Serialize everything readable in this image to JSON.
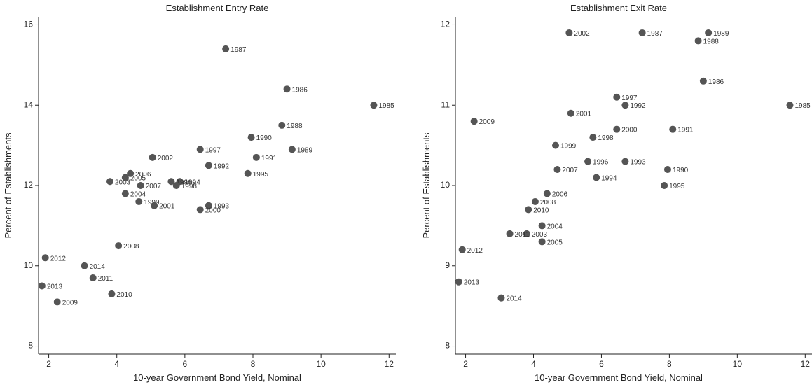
{
  "chart_data": [
    {
      "type": "scatter",
      "title": "Establishment Entry Rate",
      "xlabel": "10-year Government Bond Yield, Nominal",
      "ylabel": "Percent of Establishments",
      "xlim": [
        1.7,
        12.2
      ],
      "ylim": [
        7.8,
        16.2
      ],
      "xticks": [
        2,
        4,
        6,
        8,
        10,
        12
      ],
      "yticks": [
        8,
        10,
        12,
        14,
        16
      ],
      "grid": false,
      "points": [
        {
          "label": "1985",
          "x": 11.55,
          "y": 14.0
        },
        {
          "label": "1986",
          "x": 9.0,
          "y": 14.4
        },
        {
          "label": "1987",
          "x": 7.2,
          "y": 15.4
        },
        {
          "label": "1988",
          "x": 8.85,
          "y": 13.5
        },
        {
          "label": "1989",
          "x": 9.15,
          "y": 12.9
        },
        {
          "label": "1990",
          "x": 7.95,
          "y": 13.2
        },
        {
          "label": "1991",
          "x": 8.1,
          "y": 12.7
        },
        {
          "label": "1992",
          "x": 6.7,
          "y": 12.5
        },
        {
          "label": "1993",
          "x": 6.7,
          "y": 11.5
        },
        {
          "label": "1994",
          "x": 5.85,
          "y": 12.1
        },
        {
          "label": "1995",
          "x": 7.85,
          "y": 12.3
        },
        {
          "label": "1996",
          "x": 5.6,
          "y": 12.1
        },
        {
          "label": "1997",
          "x": 6.45,
          "y": 12.9
        },
        {
          "label": "1998",
          "x": 5.75,
          "y": 12.0
        },
        {
          "label": "1999",
          "x": 4.65,
          "y": 11.6
        },
        {
          "label": "2000",
          "x": 6.45,
          "y": 11.4
        },
        {
          "label": "2001",
          "x": 5.1,
          "y": 11.5
        },
        {
          "label": "2002",
          "x": 5.05,
          "y": 12.7
        },
        {
          "label": "2003",
          "x": 3.8,
          "y": 12.1
        },
        {
          "label": "2004",
          "x": 4.25,
          "y": 11.8
        },
        {
          "label": "2005",
          "x": 4.25,
          "y": 12.2
        },
        {
          "label": "2006",
          "x": 4.4,
          "y": 12.3
        },
        {
          "label": "2007",
          "x": 4.7,
          "y": 12.0
        },
        {
          "label": "2008",
          "x": 4.05,
          "y": 10.5
        },
        {
          "label": "2009",
          "x": 2.25,
          "y": 9.1
        },
        {
          "label": "2010",
          "x": 3.85,
          "y": 9.3
        },
        {
          "label": "2011",
          "x": 3.3,
          "y": 9.7
        },
        {
          "label": "2012",
          "x": 1.9,
          "y": 10.2
        },
        {
          "label": "2013",
          "x": 1.8,
          "y": 9.5
        },
        {
          "label": "2014",
          "x": 3.05,
          "y": 10.0
        }
      ]
    },
    {
      "type": "scatter",
      "title": "Establishment Exit Rate",
      "xlabel": "10-year Government Bond Yield, Nominal",
      "ylabel": "Percent of Establishments",
      "xlim": [
        1.7,
        12.2
      ],
      "ylim": [
        7.9,
        12.1
      ],
      "xticks": [
        2,
        4,
        6,
        8,
        10,
        12
      ],
      "yticks": [
        8,
        9,
        10,
        11,
        12
      ],
      "grid": false,
      "points": [
        {
          "label": "1985",
          "x": 11.55,
          "y": 11.0
        },
        {
          "label": "1986",
          "x": 9.0,
          "y": 11.3
        },
        {
          "label": "1987",
          "x": 7.2,
          "y": 11.9
        },
        {
          "label": "1988",
          "x": 8.85,
          "y": 11.8
        },
        {
          "label": "1989",
          "x": 9.15,
          "y": 11.9
        },
        {
          "label": "1990",
          "x": 7.95,
          "y": 10.2
        },
        {
          "label": "1991",
          "x": 8.1,
          "y": 10.7
        },
        {
          "label": "1992",
          "x": 6.7,
          "y": 11.0
        },
        {
          "label": "1993",
          "x": 6.7,
          "y": 10.3
        },
        {
          "label": "1994",
          "x": 5.85,
          "y": 10.1
        },
        {
          "label": "1995",
          "x": 7.85,
          "y": 10.0
        },
        {
          "label": "1996",
          "x": 5.6,
          "y": 10.3
        },
        {
          "label": "1997",
          "x": 6.45,
          "y": 11.1
        },
        {
          "label": "1998",
          "x": 5.75,
          "y": 10.6
        },
        {
          "label": "1999",
          "x": 4.65,
          "y": 10.5
        },
        {
          "label": "2000",
          "x": 6.45,
          "y": 10.7
        },
        {
          "label": "2001",
          "x": 5.1,
          "y": 10.9
        },
        {
          "label": "2002",
          "x": 5.05,
          "y": 11.9
        },
        {
          "label": "2003",
          "x": 3.8,
          "y": 9.4
        },
        {
          "label": "2004",
          "x": 4.25,
          "y": 9.5
        },
        {
          "label": "2005",
          "x": 4.25,
          "y": 9.3
        },
        {
          "label": "2006",
          "x": 4.4,
          "y": 9.9
        },
        {
          "label": "2007",
          "x": 4.7,
          "y": 10.2
        },
        {
          "label": "2008",
          "x": 4.05,
          "y": 9.8
        },
        {
          "label": "2009",
          "x": 2.25,
          "y": 10.8
        },
        {
          "label": "2010",
          "x": 3.85,
          "y": 9.7
        },
        {
          "label": "2011",
          "x": 3.3,
          "y": 9.4
        },
        {
          "label": "2012",
          "x": 1.9,
          "y": 9.2
        },
        {
          "label": "2013",
          "x": 1.8,
          "y": 8.8
        },
        {
          "label": "2014",
          "x": 3.05,
          "y": 8.6
        }
      ]
    }
  ],
  "colors": {
    "marker": "#555555",
    "axis": "#222222",
    "text": "#222222"
  }
}
